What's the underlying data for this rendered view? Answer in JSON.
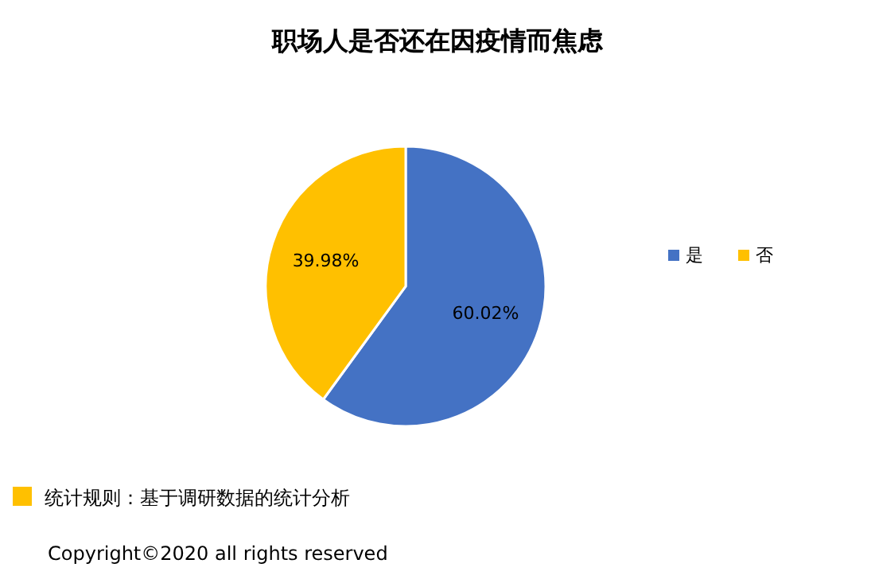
{
  "chart_data": {
    "type": "pie",
    "title": "职场人是否还在因疫情而焦虑",
    "categories": [
      "是",
      "否"
    ],
    "values": [
      60.02,
      39.98
    ],
    "colors": [
      "#4472c4",
      "#ffc000"
    ],
    "value_labels": [
      "60.02%",
      "39.98%"
    ],
    "legend": "right",
    "annotations": [
      "统计规则：基于调研数据的统计分析",
      "Copyright©2020 all rights reserved"
    ]
  }
}
